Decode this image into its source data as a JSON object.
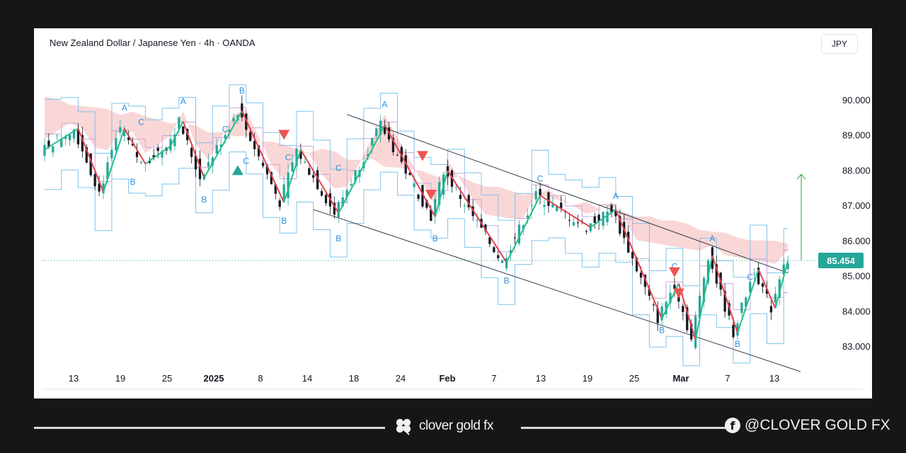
{
  "header": {
    "title": "New Zealand Dollar / Japanese Yen · 4h · OANDA",
    "currency_button": "JPY"
  },
  "footer": {
    "brand": "clover gold fx",
    "social": "@CLOVER GOLD FX"
  },
  "chart_data": {
    "type": "candlestick",
    "symbol": "NZD/JPY",
    "timeframe": "4h",
    "ylim": [
      82.2,
      91.0
    ],
    "y_ticks": [
      83.0,
      84.0,
      85.0,
      86.0,
      87.0,
      88.0,
      89.0,
      90.0
    ],
    "y_tick_labels": [
      "83.000",
      "84.000",
      "85.000",
      "86.000",
      "87.000",
      "88.000",
      "89.000",
      "90.000"
    ],
    "x_tick_labels": [
      "13",
      "19",
      "25",
      "2025",
      "8",
      "14",
      "18",
      "24",
      "Feb",
      "7",
      "13",
      "19",
      "25",
      "Mar",
      "7",
      "13"
    ],
    "last_price": 85.454,
    "last_price_label": "85.454",
    "accent_color": "#26a69a",
    "down_color": "#ef5350",
    "zigzag_path": [
      {
        "i": 0,
        "y": 88.6
      },
      {
        "i": 8,
        "y": 89.2
      },
      {
        "i": 14,
        "y": 87.4
      },
      {
        "i": 19,
        "y": 89.2
      },
      {
        "i": 24,
        "y": 88.2
      },
      {
        "i": 30,
        "y": 88.7
      },
      {
        "i": 33,
        "y": 89.4
      },
      {
        "i": 38,
        "y": 87.8
      },
      {
        "i": 47,
        "y": 89.7
      },
      {
        "i": 57,
        "y": 87.1
      },
      {
        "i": 61,
        "y": 88.6
      },
      {
        "i": 70,
        "y": 86.8
      },
      {
        "i": 81,
        "y": 89.3
      },
      {
        "i": 93,
        "y": 86.7
      },
      {
        "i": 96,
        "y": 88.0
      },
      {
        "i": 110,
        "y": 85.4
      },
      {
        "i": 118,
        "y": 87.3
      },
      {
        "i": 130,
        "y": 86.4
      },
      {
        "i": 136,
        "y": 86.9
      },
      {
        "i": 147,
        "y": 83.8
      },
      {
        "i": 151,
        "y": 84.8
      },
      {
        "i": 155,
        "y": 83.2
      },
      {
        "i": 159,
        "y": 85.6
      },
      {
        "i": 165,
        "y": 83.4
      },
      {
        "i": 170,
        "y": 85.2
      },
      {
        "i": 174,
        "y": 84.1
      },
      {
        "i": 177,
        "y": 85.45
      }
    ],
    "channel_upper": [
      {
        "i": 72,
        "y": 89.6
      },
      {
        "i": 177,
        "y": 85.1
      }
    ],
    "channel_lower": [
      {
        "i": 64,
        "y": 86.9
      },
      {
        "i": 180,
        "y": 82.3
      }
    ],
    "target_arrow": {
      "from": 85.45,
      "to": 87.9
    },
    "wave_labels": [
      {
        "text": "A",
        "i": 19,
        "y": 89.7,
        "pos": "above"
      },
      {
        "text": "C",
        "i": 23,
        "y": 89.3,
        "pos": "above"
      },
      {
        "text": "B",
        "i": 21,
        "y": 87.6,
        "pos": "below"
      },
      {
        "text": "A",
        "i": 33,
        "y": 89.9,
        "pos": "above"
      },
      {
        "text": "B",
        "i": 47,
        "y": 90.2,
        "pos": "above"
      },
      {
        "text": "C",
        "i": 43,
        "y": 89.1,
        "pos": "above"
      },
      {
        "text": "C",
        "i": 48,
        "y": 88.2,
        "pos": "below"
      },
      {
        "text": "B",
        "i": 38,
        "y": 87.1,
        "pos": "below"
      },
      {
        "text": "C",
        "i": 58,
        "y": 88.3,
        "pos": "above"
      },
      {
        "text": "B",
        "i": 57,
        "y": 86.5,
        "pos": "below"
      },
      {
        "text": "B",
        "i": 70,
        "y": 86.0,
        "pos": "below"
      },
      {
        "text": "C",
        "i": 70,
        "y": 88.0,
        "pos": "above"
      },
      {
        "text": "A",
        "i": 81,
        "y": 89.8,
        "pos": "above"
      },
      {
        "text": "B",
        "i": 93,
        "y": 86.0,
        "pos": "below"
      },
      {
        "text": "B",
        "i": 110,
        "y": 84.8,
        "pos": "below"
      },
      {
        "text": "C",
        "i": 118,
        "y": 87.7,
        "pos": "above"
      },
      {
        "text": "A",
        "i": 136,
        "y": 87.2,
        "pos": "above"
      },
      {
        "text": "B",
        "i": 147,
        "y": 83.4,
        "pos": "below"
      },
      {
        "text": "C",
        "i": 150,
        "y": 85.2,
        "pos": "above"
      },
      {
        "text": "A",
        "i": 159,
        "y": 86.0,
        "pos": "above"
      },
      {
        "text": "C",
        "i": 168,
        "y": 84.9,
        "pos": "above"
      },
      {
        "text": "B",
        "i": 165,
        "y": 83.0,
        "pos": "below"
      }
    ],
    "signals": [
      {
        "dir": "down",
        "i": 57,
        "y": 89.0
      },
      {
        "dir": "down",
        "i": 90,
        "y": 88.4
      },
      {
        "dir": "down",
        "i": 92,
        "y": 87.3
      },
      {
        "dir": "down",
        "i": 150,
        "y": 85.1
      },
      {
        "dir": "down",
        "i": 151,
        "y": 84.5
      },
      {
        "dir": "up",
        "i": 46,
        "y": 88.0
      }
    ]
  }
}
